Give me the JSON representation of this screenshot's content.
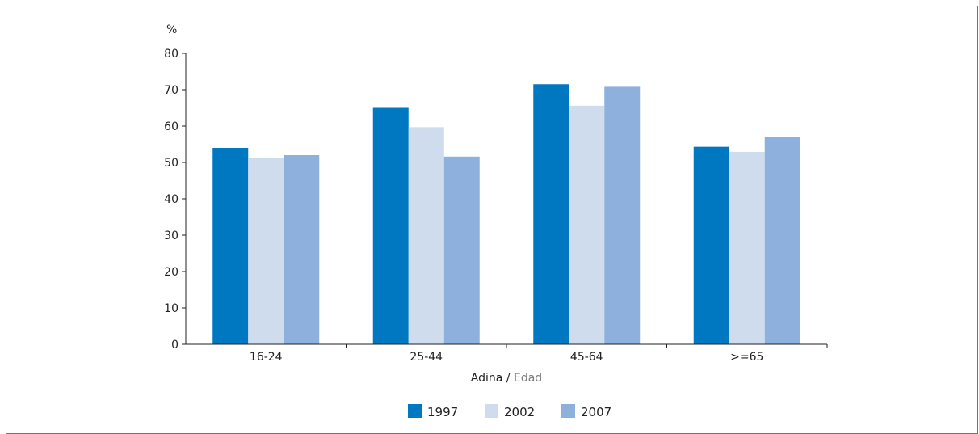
{
  "chart_data": {
    "type": "bar",
    "ylabel": "%",
    "xlabel_main": "Adina",
    "xlabel_sep": " / ",
    "xlabel_sub": "Edad",
    "ylim": [
      0,
      80
    ],
    "yticks": [
      0,
      10,
      20,
      30,
      40,
      50,
      60,
      70,
      80
    ],
    "categories": [
      "16-24",
      "25-44",
      "45-64",
      ">=65"
    ],
    "series": [
      {
        "name": "1997",
        "color": "#0078c1",
        "values": [
          54,
          65,
          71.5,
          54.3
        ]
      },
      {
        "name": "2002",
        "color": "#cfdcee",
        "values": [
          51.3,
          59.7,
          65.6,
          52.9
        ]
      },
      {
        "name": "2007",
        "color": "#8db0dc",
        "values": [
          52,
          51.6,
          70.8,
          57
        ]
      }
    ],
    "grid": false,
    "legend_position": "bottom"
  }
}
